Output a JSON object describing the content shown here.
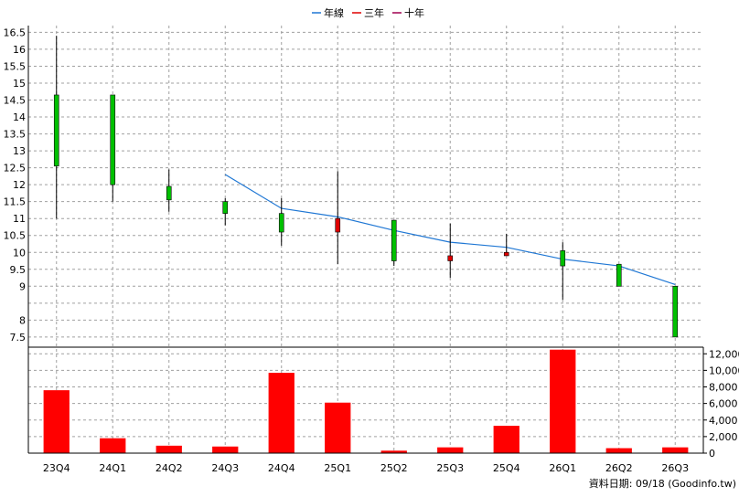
{
  "legend": {
    "items": [
      {
        "label": "年線",
        "color": "#1f77d4"
      },
      {
        "label": "三年",
        "color": "#e00000"
      },
      {
        "label": "十年",
        "color": "#a00050"
      }
    ]
  },
  "footer": {
    "source_text": "資料日期: 09/18 (Goodinfo.tw)"
  },
  "chart_data": [
    {
      "type": "candlestick",
      "categories": [
        "23Q4",
        "24Q1",
        "24Q2",
        "24Q3",
        "24Q4",
        "25Q1",
        "25Q2",
        "25Q3",
        "25Q4",
        "26Q1",
        "26Q2",
        "26Q3"
      ],
      "ohlc": [
        {
          "open": 12.55,
          "high": 16.4,
          "low": 11.0,
          "close": 14.65
        },
        {
          "open": 12.0,
          "high": 14.65,
          "low": 11.5,
          "close": 14.65
        },
        {
          "open": 11.55,
          "high": 12.45,
          "low": 11.2,
          "close": 11.95
        },
        {
          "open": 11.15,
          "high": 11.6,
          "low": 10.8,
          "close": 11.5
        },
        {
          "open": 10.6,
          "high": 11.6,
          "low": 10.2,
          "close": 11.15
        },
        {
          "open": 11.0,
          "high": 12.4,
          "low": 9.65,
          "close": 10.6
        },
        {
          "open": 9.75,
          "high": 10.95,
          "low": 9.6,
          "close": 10.95
        },
        {
          "open": 9.9,
          "high": 10.85,
          "low": 9.25,
          "close": 9.75
        },
        {
          "open": 10.0,
          "high": 10.55,
          "low": 9.9,
          "close": 9.9
        },
        {
          "open": 9.6,
          "high": 10.3,
          "low": 8.6,
          "close": 10.05
        },
        {
          "open": 9.0,
          "high": 9.65,
          "low": 9.0,
          "close": 9.65
        },
        {
          "open": 7.5,
          "high": 9.0,
          "low": 7.5,
          "close": 9.0
        }
      ],
      "series": [
        {
          "name": "年線",
          "values": [
            null,
            null,
            null,
            12.3,
            11.3,
            11.05,
            10.65,
            10.3,
            10.15,
            9.8,
            9.6,
            9.05
          ]
        }
      ],
      "y_ticks": [
        7.5,
        8,
        9,
        9.5,
        10,
        10.5,
        11,
        11.5,
        12,
        12.5,
        13,
        13.5,
        14,
        14.5,
        15,
        15.5,
        16,
        16.5
      ],
      "y_tick_labels": [
        "7.5",
        "8",
        "9",
        "9.5",
        "10",
        "10.5",
        "11",
        "11.5",
        "12",
        "12.5",
        "13",
        "13.5",
        "14",
        "14.5",
        "15",
        "15.5",
        "16",
        "16.5"
      ],
      "y_ticks_scale": [
        7.5,
        8,
        8.5,
        9,
        9.5,
        10,
        10.5,
        11,
        11.5,
        12,
        12.5,
        13,
        13.5,
        14,
        14.5,
        15,
        15.5,
        16,
        16.5
      ],
      "ylim": [
        7.2,
        16.7
      ],
      "grid": true,
      "legend_position": "top-center",
      "up_color": "#e00000",
      "down_color": "#00c000"
    },
    {
      "type": "bar",
      "categories": [
        "23Q4",
        "24Q1",
        "24Q2",
        "24Q3",
        "24Q4",
        "25Q1",
        "25Q2",
        "25Q3",
        "25Q4",
        "26Q1",
        "26Q2",
        "26Q3"
      ],
      "values": [
        7600,
        1800,
        900,
        800,
        9700,
        6100,
        300,
        700,
        3300,
        12500,
        600,
        700
      ],
      "y_ticks": [
        0,
        2000,
        4000,
        6000,
        8000,
        10000,
        12000
      ],
      "y_tick_labels": [
        "0",
        "2,000",
        "4,000",
        "6,000",
        "8,000",
        "10,000",
        "12,000"
      ],
      "ylim": [
        0,
        12800
      ],
      "color": "#ff0000",
      "grid": true
    }
  ]
}
